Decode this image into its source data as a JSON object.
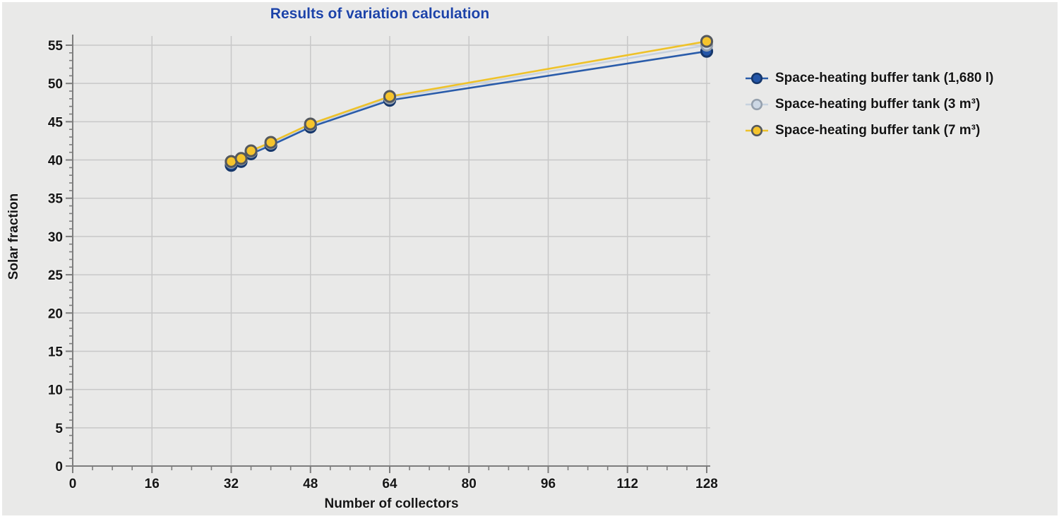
{
  "panel": {
    "background": "#e9e9e8",
    "border_color": "#ffffff"
  },
  "chart_data": {
    "type": "line",
    "title": "Results of variation calculation",
    "title_color": "#1d43a8",
    "xlabel": "Number of collectors",
    "ylabel": "Solar fraction",
    "xlim": [
      0,
      128.7
    ],
    "ylim": [
      0,
      56.2
    ],
    "x_major_ticks": [
      0,
      16,
      32,
      48,
      64,
      80,
      96,
      112,
      128
    ],
    "x_minor_step": 4,
    "y_major_ticks": [
      0,
      5,
      10,
      15,
      20,
      25,
      30,
      35,
      40,
      45,
      50,
      55
    ],
    "y_minor_step": 1,
    "grid": true,
    "grid_color": "#c8c8c8",
    "axis_color": "#7d7d7d",
    "legend_position": "right",
    "x": [
      32,
      34,
      36,
      40,
      48,
      64,
      128
    ],
    "series": [
      {
        "name": "Space-heating buffer tank (1,680 l)",
        "values": [
          39.3,
          39.8,
          40.8,
          41.9,
          44.3,
          47.8,
          54.2
        ],
        "line_color": "#2a5caa",
        "marker_fill": "#2456a8",
        "marker_ring": "#16376b"
      },
      {
        "name": "Space-heating buffer tank (3 m³)",
        "values": [
          39.7,
          40.1,
          41.1,
          42.2,
          44.6,
          48.1,
          55.0
        ],
        "line_color": "#c7d2df",
        "marker_fill": "#cdd8e5",
        "marker_ring": "#96a1ae"
      },
      {
        "name": "Space-heating buffer tank (7 m³)",
        "values": [
          39.8,
          40.2,
          41.2,
          42.3,
          44.7,
          48.3,
          55.5
        ],
        "line_color": "#eec22a",
        "marker_fill": "#f5c42d",
        "marker_ring": "#54585e"
      }
    ]
  }
}
